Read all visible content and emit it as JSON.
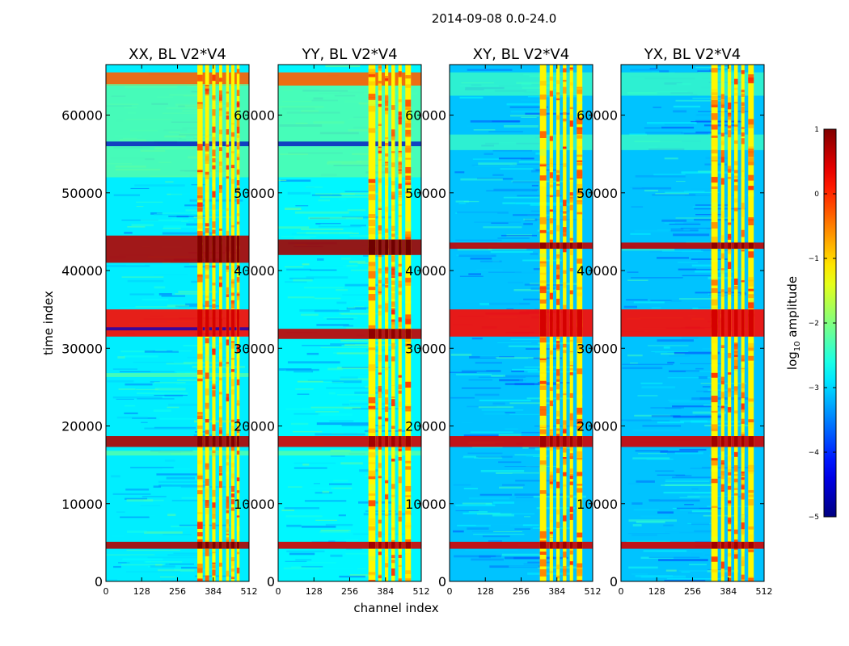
{
  "chart_data": {
    "type": "heatmap",
    "suptitle": "2014-09-08 0.0-24.0",
    "xlabel": "channel index",
    "ylabel": "time index",
    "xlim": [
      0,
      512
    ],
    "ylim": [
      0,
      66500
    ],
    "x_ticks": [
      0,
      128,
      256,
      384,
      512
    ],
    "x_tick_labels": [
      "0",
      "128",
      "256",
      "384",
      "512"
    ],
    "y_ticks": [
      0,
      10000,
      20000,
      30000,
      40000,
      50000,
      60000
    ],
    "y_tick_labels": [
      "0",
      "10000",
      "20000",
      "30000",
      "40000",
      "50000",
      "60000"
    ],
    "colormap": "jet",
    "colorbar": {
      "label_prefix": "log",
      "label_sub": "10",
      "label_suffix": " amplitude",
      "range": [
        -5,
        1
      ],
      "ticks": [
        1,
        0,
        -1,
        -2,
        -3,
        -4,
        -5
      ],
      "tick_labels": [
        "1",
        "0",
        "−1",
        "−2",
        "−3",
        "−4",
        "−5"
      ]
    },
    "panels": [
      {
        "title": "XX, BL V2*V4",
        "background": -2.85,
        "rfi_columns": [
          {
            "x0": 327,
            "x1": 346
          },
          {
            "x0": 355,
            "x1": 369
          },
          {
            "x0": 380,
            "x1": 392
          },
          {
            "x0": 405,
            "x1": 416
          },
          {
            "x0": 430,
            "x1": 440
          },
          {
            "x0": 448,
            "x1": 460
          },
          {
            "x0": 468,
            "x1": 478
          }
        ],
        "time_bands": [
          {
            "t0": 41000,
            "t1": 44500,
            "level": 0.7
          },
          {
            "t0": 17300,
            "t1": 18700,
            "level": 0.7
          },
          {
            "t0": 4200,
            "t1": 5100,
            "level": 0.7
          },
          {
            "t0": 31500,
            "t1": 35000,
            "level": 0.2
          },
          {
            "t0": 63800,
            "t1": 65500,
            "level": -0.3
          },
          {
            "t0": 52000,
            "t1": 64000,
            "level": -2.2
          },
          {
            "t0": 56000,
            "t1": 56600,
            "level": -4.6
          },
          {
            "t0": 26300,
            "t1": 26800,
            "level": -2.2
          },
          {
            "t0": 16200,
            "t1": 16800,
            "level": -2.2
          },
          {
            "t0": 32300,
            "t1": 32700,
            "level": -4.6
          }
        ]
      },
      {
        "title": "YY, BL V2*V4",
        "background": -2.8,
        "rfi_columns": [
          {
            "x0": 323,
            "x1": 348
          },
          {
            "x0": 358,
            "x1": 370
          },
          {
            "x0": 382,
            "x1": 394
          },
          {
            "x0": 405,
            "x1": 418
          },
          {
            "x0": 430,
            "x1": 442
          },
          {
            "x0": 455,
            "x1": 475
          }
        ],
        "time_bands": [
          {
            "t0": 42000,
            "t1": 44000,
            "level": 0.8
          },
          {
            "t0": 31200,
            "t1": 32500,
            "level": 0.6
          },
          {
            "t0": 17300,
            "t1": 18700,
            "level": 0.5
          },
          {
            "t0": 4200,
            "t1": 5100,
            "level": 0.5
          },
          {
            "t0": 52000,
            "t1": 64500,
            "level": -2.2
          },
          {
            "t0": 63800,
            "t1": 65500,
            "level": -0.3
          },
          {
            "t0": 56000,
            "t1": 56600,
            "level": -4.6
          },
          {
            "t0": 16200,
            "t1": 16800,
            "level": -2.2
          }
        ]
      },
      {
        "title": "XY, BL V2*V4",
        "background": -3.1,
        "rfi_columns": [
          {
            "x0": 323,
            "x1": 346
          },
          {
            "x0": 358,
            "x1": 370
          },
          {
            "x0": 382,
            "x1": 394
          },
          {
            "x0": 405,
            "x1": 418
          },
          {
            "x0": 430,
            "x1": 442
          },
          {
            "x0": 455,
            "x1": 475
          }
        ],
        "time_bands": [
          {
            "t0": 42800,
            "t1": 43600,
            "level": 0.6
          },
          {
            "t0": 31500,
            "t1": 35000,
            "level": 0.2
          },
          {
            "t0": 17300,
            "t1": 18700,
            "level": 0.5
          },
          {
            "t0": 4200,
            "t1": 5100,
            "level": 0.5
          },
          {
            "t0": 55500,
            "t1": 57500,
            "level": -2.4
          },
          {
            "t0": 62500,
            "t1": 65500,
            "level": -2.4
          }
        ]
      },
      {
        "title": "YX, BL V2*V4",
        "background": -3.1,
        "rfi_columns": [
          {
            "x0": 323,
            "x1": 346
          },
          {
            "x0": 358,
            "x1": 370
          },
          {
            "x0": 382,
            "x1": 394
          },
          {
            "x0": 405,
            "x1": 418
          },
          {
            "x0": 430,
            "x1": 442
          },
          {
            "x0": 455,
            "x1": 475
          }
        ],
        "time_bands": [
          {
            "t0": 42800,
            "t1": 43600,
            "level": 0.6
          },
          {
            "t0": 31500,
            "t1": 35000,
            "level": 0.2
          },
          {
            "t0": 17300,
            "t1": 18700,
            "level": 0.5
          },
          {
            "t0": 4200,
            "t1": 5100,
            "level": 0.5
          },
          {
            "t0": 55500,
            "t1": 57500,
            "level": -2.4
          },
          {
            "t0": 62500,
            "t1": 65500,
            "level": -2.4
          }
        ]
      }
    ]
  }
}
